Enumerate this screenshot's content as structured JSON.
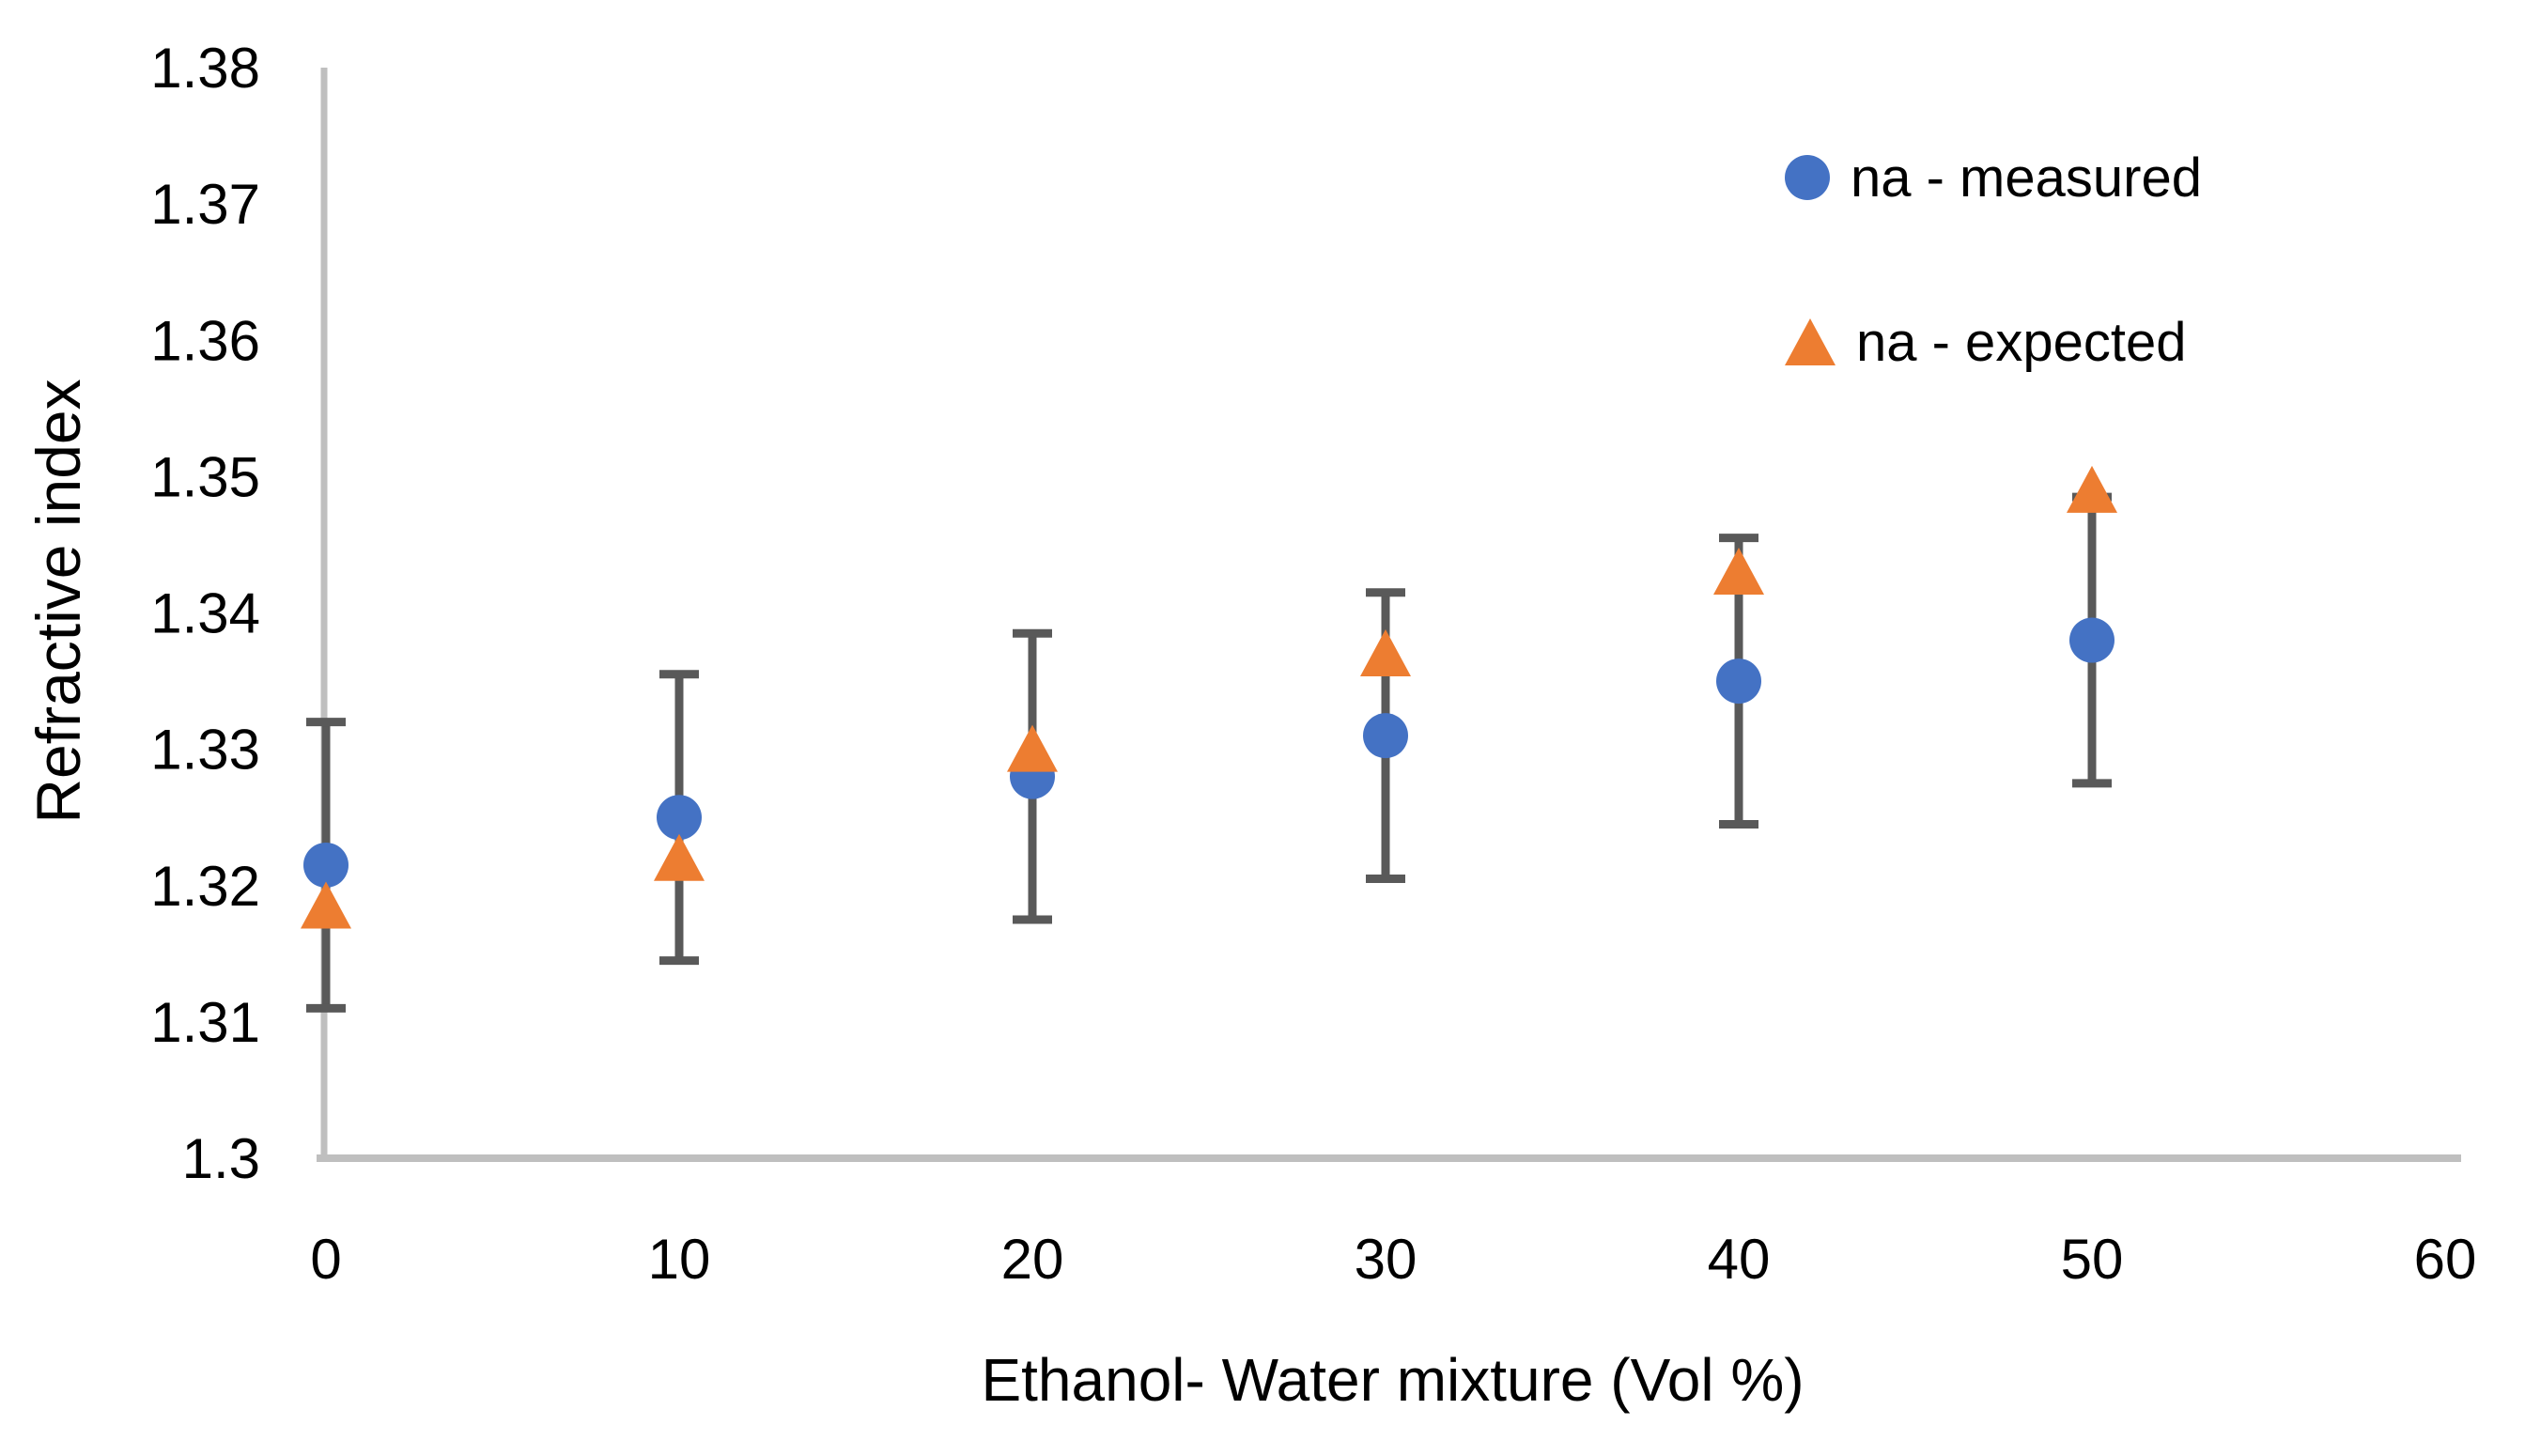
{
  "chart_data": {
    "type": "scatter",
    "title": "",
    "xlabel": "Ethanol- Water mixture (Vol %)",
    "ylabel": "Refractive index",
    "x": [
      0,
      10,
      20,
      30,
      40,
      50
    ],
    "series": [
      {
        "name": "na - measured",
        "marker": "circle",
        "color": "#4472C4",
        "values": [
          1.3215,
          1.325,
          1.328,
          1.331,
          1.335,
          1.338
        ],
        "error_bar_plus_minus": 0.0105
      },
      {
        "name": "na - expected",
        "marker": "triangle",
        "color": "#ED7D31",
        "values": [
          1.3185,
          1.322,
          1.33,
          1.337,
          1.343,
          1.349
        ]
      }
    ],
    "xlim": [
      0,
      60
    ],
    "ylim": [
      1.3,
      1.38
    ],
    "x_ticks": [
      0,
      10,
      20,
      30,
      40,
      50,
      60
    ],
    "y_tick_labels": [
      "1.3",
      "1.31",
      "1.32",
      "1.33",
      "1.34",
      "1.35",
      "1.36",
      "1.37",
      "1.38"
    ],
    "grid": false,
    "legend_position": "inside-top-right",
    "error_bar_color": "#595959",
    "axis_line_color": "#BFBFBF",
    "text_color": "#000000",
    "background_color": "#FFFFFF"
  }
}
